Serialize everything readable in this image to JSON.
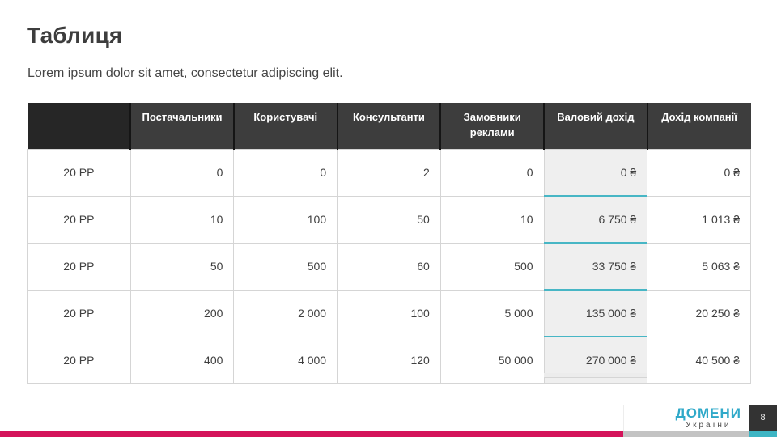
{
  "slide": {
    "title": "Таблиця",
    "subtitle": "Lorem ipsum dolor sit amet, consectetur adipiscing elit.",
    "page_number": "8"
  },
  "table": {
    "columns": [
      "",
      "Постачальники",
      "Користувачі",
      "Консультанти",
      "Замовники реклами",
      "Валовий дохід",
      "Дохід компанії"
    ],
    "rows": [
      {
        "label": "20 РР",
        "values": [
          "0",
          "0",
          "2",
          "0",
          "0 ₴",
          "0 ₴"
        ]
      },
      {
        "label": "20 РР",
        "values": [
          "10",
          "100",
          "50",
          "10",
          "6 750 ₴",
          "1 013 ₴"
        ]
      },
      {
        "label": "20 РР",
        "values": [
          "50",
          "500",
          "60",
          "500",
          "33 750 ₴",
          "5 063 ₴"
        ]
      },
      {
        "label": "20 РР",
        "values": [
          "200",
          "2 000",
          "100",
          "5 000",
          "135 000 ₴",
          "20 250 ₴"
        ]
      },
      {
        "label": "20 РР",
        "values": [
          "400",
          "4 000",
          "120",
          "50 000",
          "270 000 ₴",
          "40 500 ₴"
        ]
      }
    ]
  },
  "footer": {
    "brand": "ДОМЕНИ",
    "brand_sub": "України"
  },
  "colors": {
    "accent_magenta": "#d4145a",
    "accent_teal": "#47b6c5",
    "header_dark": "#3d3d3d",
    "header_first_cell": "#262626",
    "gross_column_bg": "#efefef",
    "brand_cyan": "#2fa9c9"
  }
}
